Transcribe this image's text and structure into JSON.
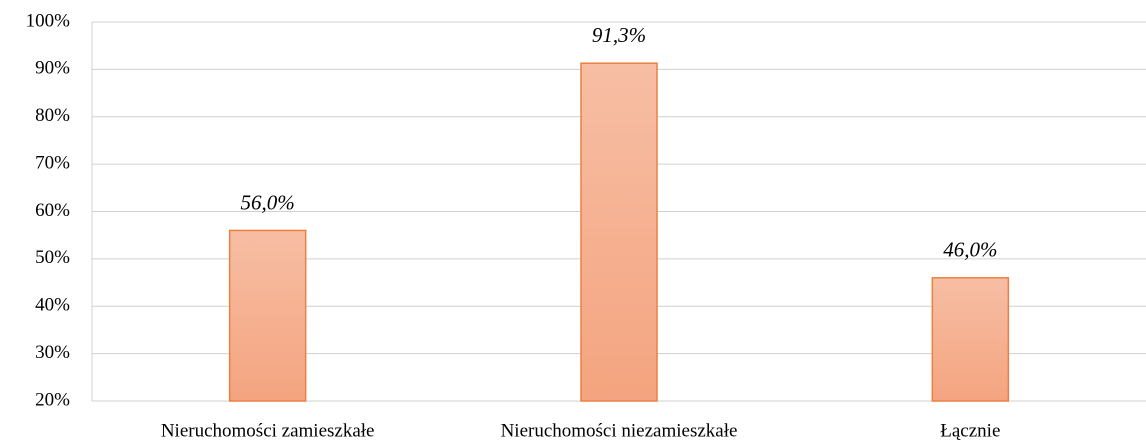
{
  "chart_data": {
    "type": "bar",
    "categories": [
      "Nieruchomości zamieszkałe",
      "Nieruchomości niezamieszkałe",
      "Łącznie"
    ],
    "values": [
      56.0,
      91.3,
      46.0
    ],
    "value_labels": [
      "56,0%",
      "91,3%",
      "46,0%"
    ],
    "color": "#f5ad8c",
    "ylim": [
      20,
      100
    ],
    "yticks": [
      {
        "value": 20,
        "label": "20%"
      },
      {
        "value": 30,
        "label": "30%"
      },
      {
        "value": 40,
        "label": "40%"
      },
      {
        "value": 50,
        "label": "50%"
      },
      {
        "value": 60,
        "label": "60%"
      },
      {
        "value": 70,
        "label": "70%"
      },
      {
        "value": 80,
        "label": "80%"
      },
      {
        "value": 90,
        "label": "90%"
      },
      {
        "value": 100,
        "label": "100%"
      }
    ],
    "grid": true
  }
}
